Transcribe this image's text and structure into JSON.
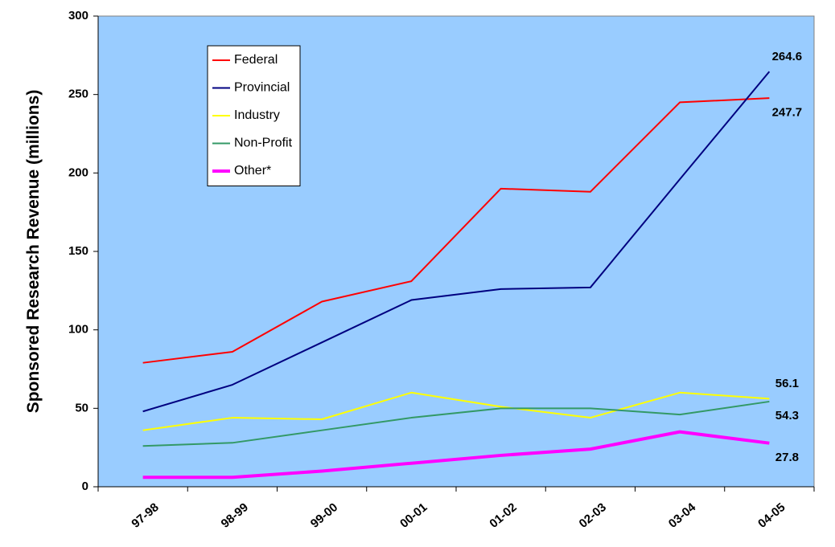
{
  "chart_data": {
    "type": "line",
    "y_label": "Sponsored Research Revenue (millions)",
    "categories": [
      "97-98",
      "98-99",
      "99-00",
      "00-01",
      "01-02",
      "02-03",
      "03-04",
      "04-05"
    ],
    "series": [
      {
        "name": "Federal",
        "color": "#ff0000",
        "values": [
          79,
          86,
          118,
          131,
          190,
          188,
          245,
          247.7
        ]
      },
      {
        "name": "Provincial",
        "color": "#000080",
        "values": [
          48,
          65,
          92,
          119,
          126,
          127,
          196,
          264.6
        ]
      },
      {
        "name": "Industry",
        "color": "#ffff00",
        "values": [
          36,
          44,
          43,
          60,
          51,
          44,
          60,
          56.1
        ]
      },
      {
        "name": "Non-Profit",
        "color": "#339966",
        "values": [
          26,
          28,
          36,
          44,
          50,
          50,
          46,
          54.3
        ]
      },
      {
        "name": "Other*",
        "color": "#ff00ff",
        "values": [
          6,
          6,
          10,
          15,
          20,
          24,
          35,
          27.8
        ]
      }
    ],
    "ylim": [
      0,
      300
    ],
    "yticks": [
      0,
      50,
      100,
      150,
      200,
      250,
      300
    ],
    "legend": "upper left"
  }
}
